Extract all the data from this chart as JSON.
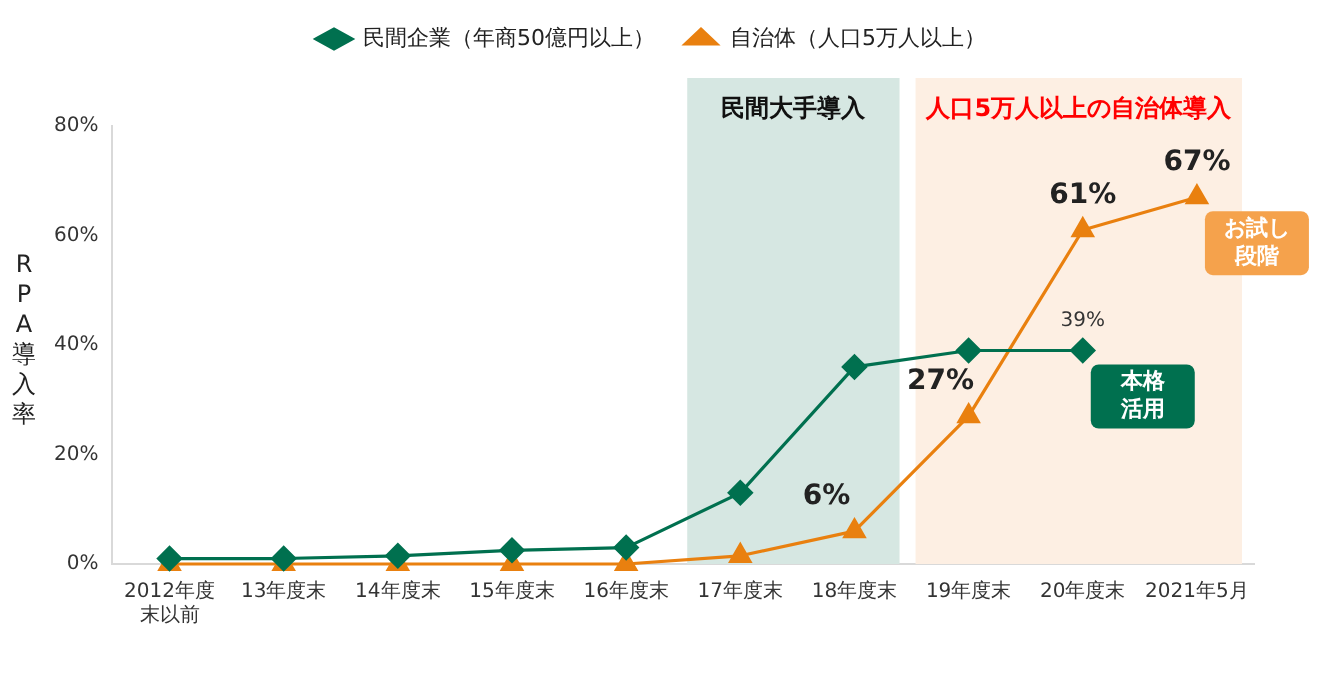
{
  "chart_data": {
    "type": "line",
    "ylabel": "RPA導入率",
    "categories": [
      "2012年度末以前",
      "13年度末",
      "14年度末",
      "15年度末",
      "16年度末",
      "17年度末",
      "18年度末",
      "19年度末",
      "20年度末",
      "2021年5月"
    ],
    "series": [
      {
        "name": "民間企業（年商50億円以上）",
        "color": "#00704f",
        "marker": "diamond",
        "values": [
          1,
          1,
          1.5,
          2.5,
          3,
          13,
          36,
          39,
          39,
          null
        ],
        "value_labels": [
          null,
          null,
          null,
          null,
          null,
          null,
          null,
          null,
          "39%",
          null
        ]
      },
      {
        "name": "自治体（人口5万人以上）",
        "color": "#e9800f",
        "marker": "triangle",
        "values": [
          0,
          0,
          0,
          0,
          0,
          1.5,
          6,
          27,
          61,
          67
        ],
        "value_labels": [
          null,
          null,
          null,
          null,
          null,
          null,
          "6%",
          "27%",
          "61%",
          "67%"
        ]
      }
    ],
    "ylim": [
      0,
      80
    ],
    "yticks": [
      {
        "value": 0,
        "label": "0%"
      },
      {
        "value": 20,
        "label": "20%"
      },
      {
        "value": 40,
        "label": "40%"
      },
      {
        "value": 60,
        "label": "60%"
      },
      {
        "value": 80,
        "label": "80%"
      }
    ],
    "bands": [
      {
        "axis": "x",
        "from": "17年度末",
        "to": "18年度末",
        "label": "民間大手導入",
        "color": "#d6e7e2"
      },
      {
        "axis": "x",
        "from": "19年度末",
        "to": "2021年5月",
        "label": "人口5万人以上の自治体導入",
        "color": "#fdefe3"
      }
    ],
    "annotations": [
      {
        "text": "本格活用",
        "x": "20年度末",
        "y": 39
      },
      {
        "text": "お試し段階",
        "x": "2021年5月",
        "y": 67
      }
    ],
    "grid": false,
    "legend": "top",
    "line_style": "solid"
  }
}
